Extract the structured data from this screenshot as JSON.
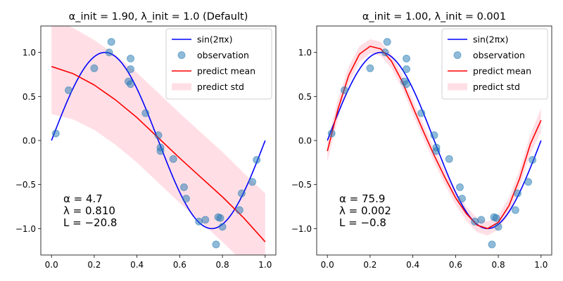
{
  "chart_data": [
    {
      "type": "line",
      "title": "α_init = 1.90,  λ_init = 1.0 (Default)",
      "xlabel": "",
      "ylabel": "",
      "xlim": [
        -0.05,
        1.05
      ],
      "ylim": [
        -1.3,
        1.3
      ],
      "xticks": [
        "0.0",
        "0.2",
        "0.4",
        "0.6",
        "0.8",
        "1.0"
      ],
      "yticks": [
        "−1.0",
        "−0.5",
        "0.0",
        "0.5",
        "1.0"
      ],
      "xtick_values": [
        0,
        0.2,
        0.4,
        0.6,
        0.8,
        1.0
      ],
      "ytick_values": [
        -1.0,
        -0.5,
        0.0,
        0.5,
        1.0
      ],
      "legend": {
        "placement": "upper right",
        "entries": [
          "sin(2πx)",
          "observation",
          "predict mean",
          "predict std"
        ]
      },
      "annotation": [
        "α = 4.7",
        "λ = 0.810",
        "L = −20.8"
      ],
      "series": [
        {
          "name": "sin(2πx)",
          "color": "#0000ff",
          "function": "sin(2*pi*x)"
        },
        {
          "name": "observation",
          "color": "#1f77b4",
          "marker": "circle",
          "alpha": 0.5,
          "points": [
            [
              0.02,
              0.08
            ],
            [
              0.08,
              0.57
            ],
            [
              0.2,
              0.82
            ],
            [
              0.27,
              1.0
            ],
            [
              0.28,
              1.12
            ],
            [
              0.36,
              0.67
            ],
            [
              0.37,
              0.81
            ],
            [
              0.37,
              0.93
            ],
            [
              0.37,
              0.64
            ],
            [
              0.44,
              0.31
            ],
            [
              0.5,
              0.06
            ],
            [
              0.51,
              -0.08
            ],
            [
              0.51,
              -0.12
            ],
            [
              0.57,
              -0.21
            ],
            [
              0.62,
              -0.53
            ],
            [
              0.63,
              -0.66
            ],
            [
              0.69,
              -0.92
            ],
            [
              0.72,
              -0.9
            ],
            [
              0.77,
              -1.18
            ],
            [
              0.78,
              -0.87
            ],
            [
              0.79,
              -0.88
            ],
            [
              0.8,
              -0.98
            ],
            [
              0.88,
              -0.79
            ],
            [
              0.89,
              -0.6
            ],
            [
              0.94,
              -0.47
            ],
            [
              0.96,
              -0.22
            ]
          ]
        },
        {
          "name": "predict mean",
          "color": "#ff0000",
          "x": [
            0.0,
            0.1,
            0.2,
            0.3,
            0.4,
            0.5,
            0.6,
            0.7,
            0.8,
            0.9,
            1.0
          ],
          "y": [
            0.84,
            0.76,
            0.63,
            0.46,
            0.26,
            0.03,
            -0.2,
            -0.42,
            -0.64,
            -0.88,
            -1.15
          ]
        },
        {
          "name": "predict std",
          "color": "#ffc0cb",
          "alpha": 0.5,
          "x": [
            0.0,
            0.1,
            0.2,
            0.3,
            0.4,
            0.5,
            0.6,
            0.7,
            0.8,
            0.9,
            1.0
          ],
          "upper": [
            1.38,
            1.28,
            1.14,
            0.97,
            0.77,
            0.54,
            0.31,
            0.09,
            -0.13,
            -0.37,
            -0.6
          ],
          "lower": [
            0.3,
            0.24,
            0.12,
            -0.05,
            -0.25,
            -0.48,
            -0.71,
            -0.93,
            -1.15,
            -1.39,
            -1.7
          ]
        }
      ]
    },
    {
      "type": "line",
      "title": "α_init = 1.00,  λ_init = 0.001",
      "xlabel": "",
      "ylabel": "",
      "xlim": [
        -0.05,
        1.05
      ],
      "ylim": [
        -1.3,
        1.3
      ],
      "xticks": [
        "0.0",
        "0.2",
        "0.4",
        "0.6",
        "0.8",
        "1.0"
      ],
      "yticks": [
        "−1.0",
        "−0.5",
        "0.0",
        "0.5",
        "1.0"
      ],
      "xtick_values": [
        0,
        0.2,
        0.4,
        0.6,
        0.8,
        1.0
      ],
      "ytick_values": [
        -1.0,
        -0.5,
        0.0,
        0.5,
        1.0
      ],
      "legend": {
        "placement": "upper right",
        "entries": [
          "sin(2πx)",
          "observation",
          "predict mean",
          "predict std"
        ]
      },
      "annotation": [
        "α = 75.9",
        "λ = 0.002",
        "L = −0.8"
      ],
      "series": [
        {
          "name": "sin(2πx)",
          "color": "#0000ff",
          "function": "sin(2*pi*x)"
        },
        {
          "name": "observation",
          "color": "#1f77b4",
          "marker": "circle",
          "alpha": 0.5,
          "points": [
            [
              0.02,
              0.08
            ],
            [
              0.08,
              0.57
            ],
            [
              0.2,
              0.82
            ],
            [
              0.27,
              1.0
            ],
            [
              0.28,
              1.12
            ],
            [
              0.36,
              0.67
            ],
            [
              0.37,
              0.81
            ],
            [
              0.37,
              0.93
            ],
            [
              0.37,
              0.64
            ],
            [
              0.44,
              0.31
            ],
            [
              0.5,
              0.06
            ],
            [
              0.51,
              -0.08
            ],
            [
              0.51,
              -0.12
            ],
            [
              0.57,
              -0.21
            ],
            [
              0.62,
              -0.53
            ],
            [
              0.63,
              -0.66
            ],
            [
              0.69,
              -0.92
            ],
            [
              0.72,
              -0.9
            ],
            [
              0.77,
              -1.18
            ],
            [
              0.78,
              -0.87
            ],
            [
              0.79,
              -0.88
            ],
            [
              0.8,
              -0.98
            ],
            [
              0.88,
              -0.79
            ],
            [
              0.89,
              -0.6
            ],
            [
              0.94,
              -0.47
            ],
            [
              0.96,
              -0.22
            ]
          ]
        },
        {
          "name": "predict mean",
          "color": "#ff0000",
          "x": [
            0.0,
            0.05,
            0.1,
            0.15,
            0.2,
            0.25,
            0.3,
            0.35,
            0.4,
            0.45,
            0.5,
            0.55,
            0.6,
            0.65,
            0.7,
            0.75,
            0.8,
            0.85,
            0.9,
            0.95,
            1.0
          ],
          "y": [
            -0.12,
            0.36,
            0.74,
            0.98,
            1.07,
            1.04,
            0.9,
            0.67,
            0.38,
            0.1,
            -0.17,
            -0.42,
            -0.65,
            -0.83,
            -0.96,
            -1.0,
            -0.93,
            -0.74,
            -0.43,
            -0.04,
            0.23
          ]
        },
        {
          "name": "predict std",
          "color": "#ffc0cb",
          "alpha": 0.5,
          "x": [
            0.0,
            0.05,
            0.1,
            0.15,
            0.2,
            0.25,
            0.3,
            0.35,
            0.4,
            0.45,
            0.5,
            0.55,
            0.6,
            0.65,
            0.7,
            0.75,
            0.8,
            0.85,
            0.9,
            0.95,
            1.0
          ],
          "upper": [
            0.0,
            0.47,
            0.84,
            1.07,
            1.15,
            1.12,
            0.98,
            0.75,
            0.46,
            0.18,
            -0.09,
            -0.34,
            -0.57,
            -0.75,
            -0.88,
            -0.92,
            -0.85,
            -0.65,
            -0.33,
            0.07,
            0.36
          ],
          "lower": [
            -0.24,
            0.25,
            0.64,
            0.89,
            0.99,
            0.96,
            0.82,
            0.59,
            0.3,
            0.02,
            -0.25,
            -0.5,
            -0.73,
            -0.91,
            -1.04,
            -1.08,
            -1.01,
            -0.83,
            -0.53,
            -0.15,
            0.1
          ]
        }
      ]
    }
  ]
}
